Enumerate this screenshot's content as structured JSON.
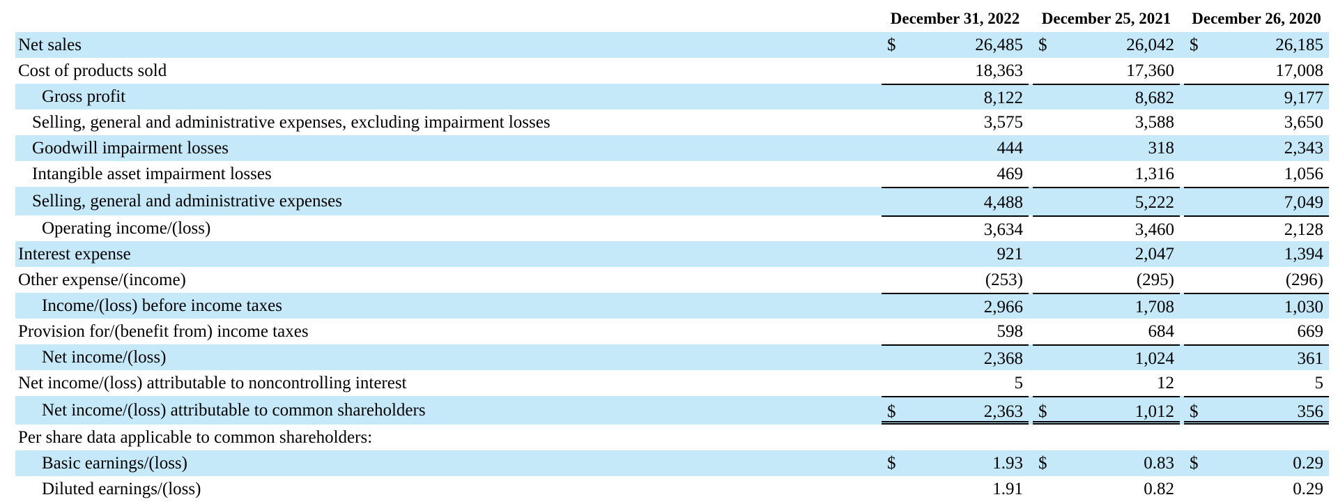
{
  "columns": [
    "December 31, 2022",
    "December 25, 2021",
    "December 26, 2020"
  ],
  "rows": [
    {
      "label": "Net sales",
      "values": [
        "26,485",
        "26,042",
        "26,185"
      ],
      "dollar": true
    },
    {
      "label": "Cost of products sold",
      "values": [
        "18,363",
        "17,360",
        "17,008"
      ],
      "dollar": false
    },
    {
      "label": "Gross profit",
      "values": [
        "8,122",
        "8,682",
        "9,177"
      ],
      "dollar": false
    },
    {
      "label": "Selling, general and administrative expenses, excluding impairment losses",
      "values": [
        "3,575",
        "3,588",
        "3,650"
      ],
      "dollar": false
    },
    {
      "label": "Goodwill impairment losses",
      "values": [
        "444",
        "318",
        "2,343"
      ],
      "dollar": false
    },
    {
      "label": "Intangible asset impairment losses",
      "values": [
        "469",
        "1,316",
        "1,056"
      ],
      "dollar": false
    },
    {
      "label": "Selling, general and administrative expenses",
      "values": [
        "4,488",
        "5,222",
        "7,049"
      ],
      "dollar": false
    },
    {
      "label": "Operating income/(loss)",
      "values": [
        "3,634",
        "3,460",
        "2,128"
      ],
      "dollar": false
    },
    {
      "label": "Interest expense",
      "values": [
        "921",
        "2,047",
        "1,394"
      ],
      "dollar": false
    },
    {
      "label": "Other expense/(income)",
      "values": [
        "(253)",
        "(295)",
        "(296)"
      ],
      "dollar": false
    },
    {
      "label": "Income/(loss) before income taxes",
      "values": [
        "2,966",
        "1,708",
        "1,030"
      ],
      "dollar": false
    },
    {
      "label": "Provision for/(benefit from) income taxes",
      "values": [
        "598",
        "684",
        "669"
      ],
      "dollar": false
    },
    {
      "label": "Net income/(loss)",
      "values": [
        "2,368",
        "1,024",
        "361"
      ],
      "dollar": false
    },
    {
      "label": "Net income/(loss) attributable to noncontrolling interest",
      "values": [
        "5",
        "12",
        "5"
      ],
      "dollar": false
    },
    {
      "label": "Net income/(loss) attributable to common shareholders",
      "values": [
        "2,363",
        "1,012",
        "356"
      ],
      "dollar": true
    },
    {
      "label": "Per share data applicable to common shareholders:",
      "values": [
        "",
        "",
        ""
      ],
      "dollar": false
    },
    {
      "label": "Basic earnings/(loss)",
      "values": [
        "1.93",
        "0.83",
        "0.29"
      ],
      "dollar": true
    },
    {
      "label": "Diluted earnings/(loss)",
      "values": [
        "1.91",
        "0.82",
        "0.29"
      ],
      "dollar": false
    }
  ],
  "currency_symbol": "$",
  "colors": {
    "row_shade": "#c5e9f9",
    "text": "#000000"
  }
}
